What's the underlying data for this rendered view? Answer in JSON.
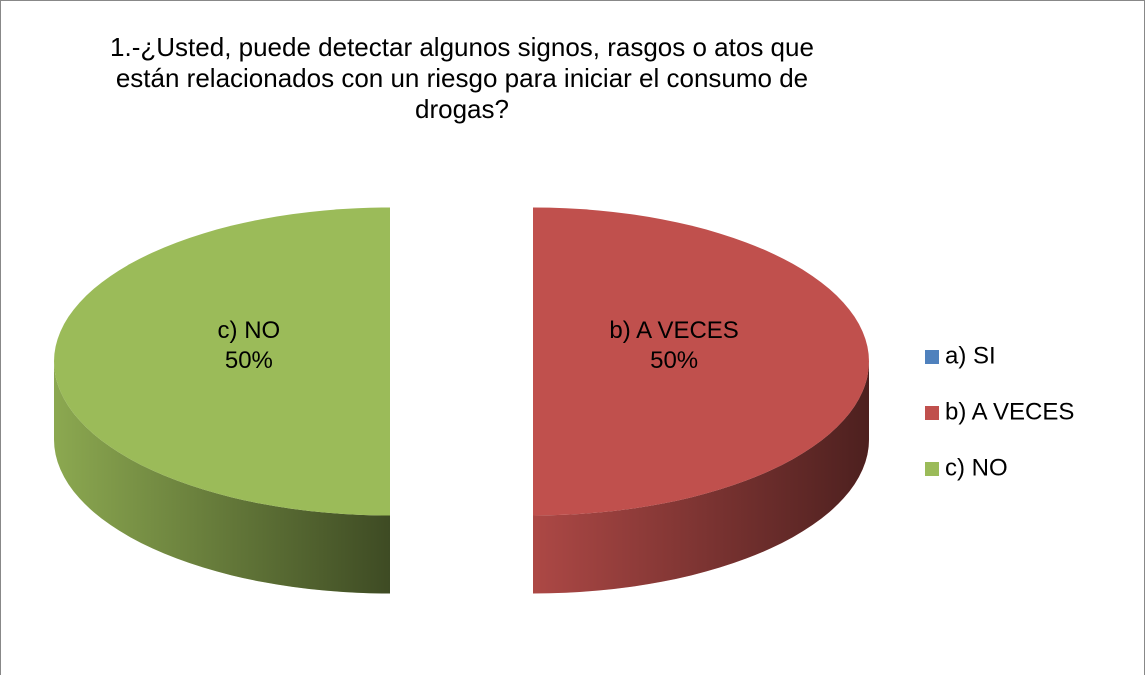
{
  "chart_data": {
    "type": "pie",
    "title": "1.-¿Usted, puede detectar algunos signos, rasgos o atos que están relacionados con un riesgo para iniciar el consumo de drogas?",
    "categories": [
      "a) SI",
      "b) A VECES",
      "c) NO"
    ],
    "values": [
      0,
      50,
      50
    ],
    "value_labels": [
      null,
      "50%",
      "50%"
    ],
    "colors": [
      "#4f81bd",
      "#c0504d",
      "#9bbb59"
    ],
    "legend": "right"
  }
}
